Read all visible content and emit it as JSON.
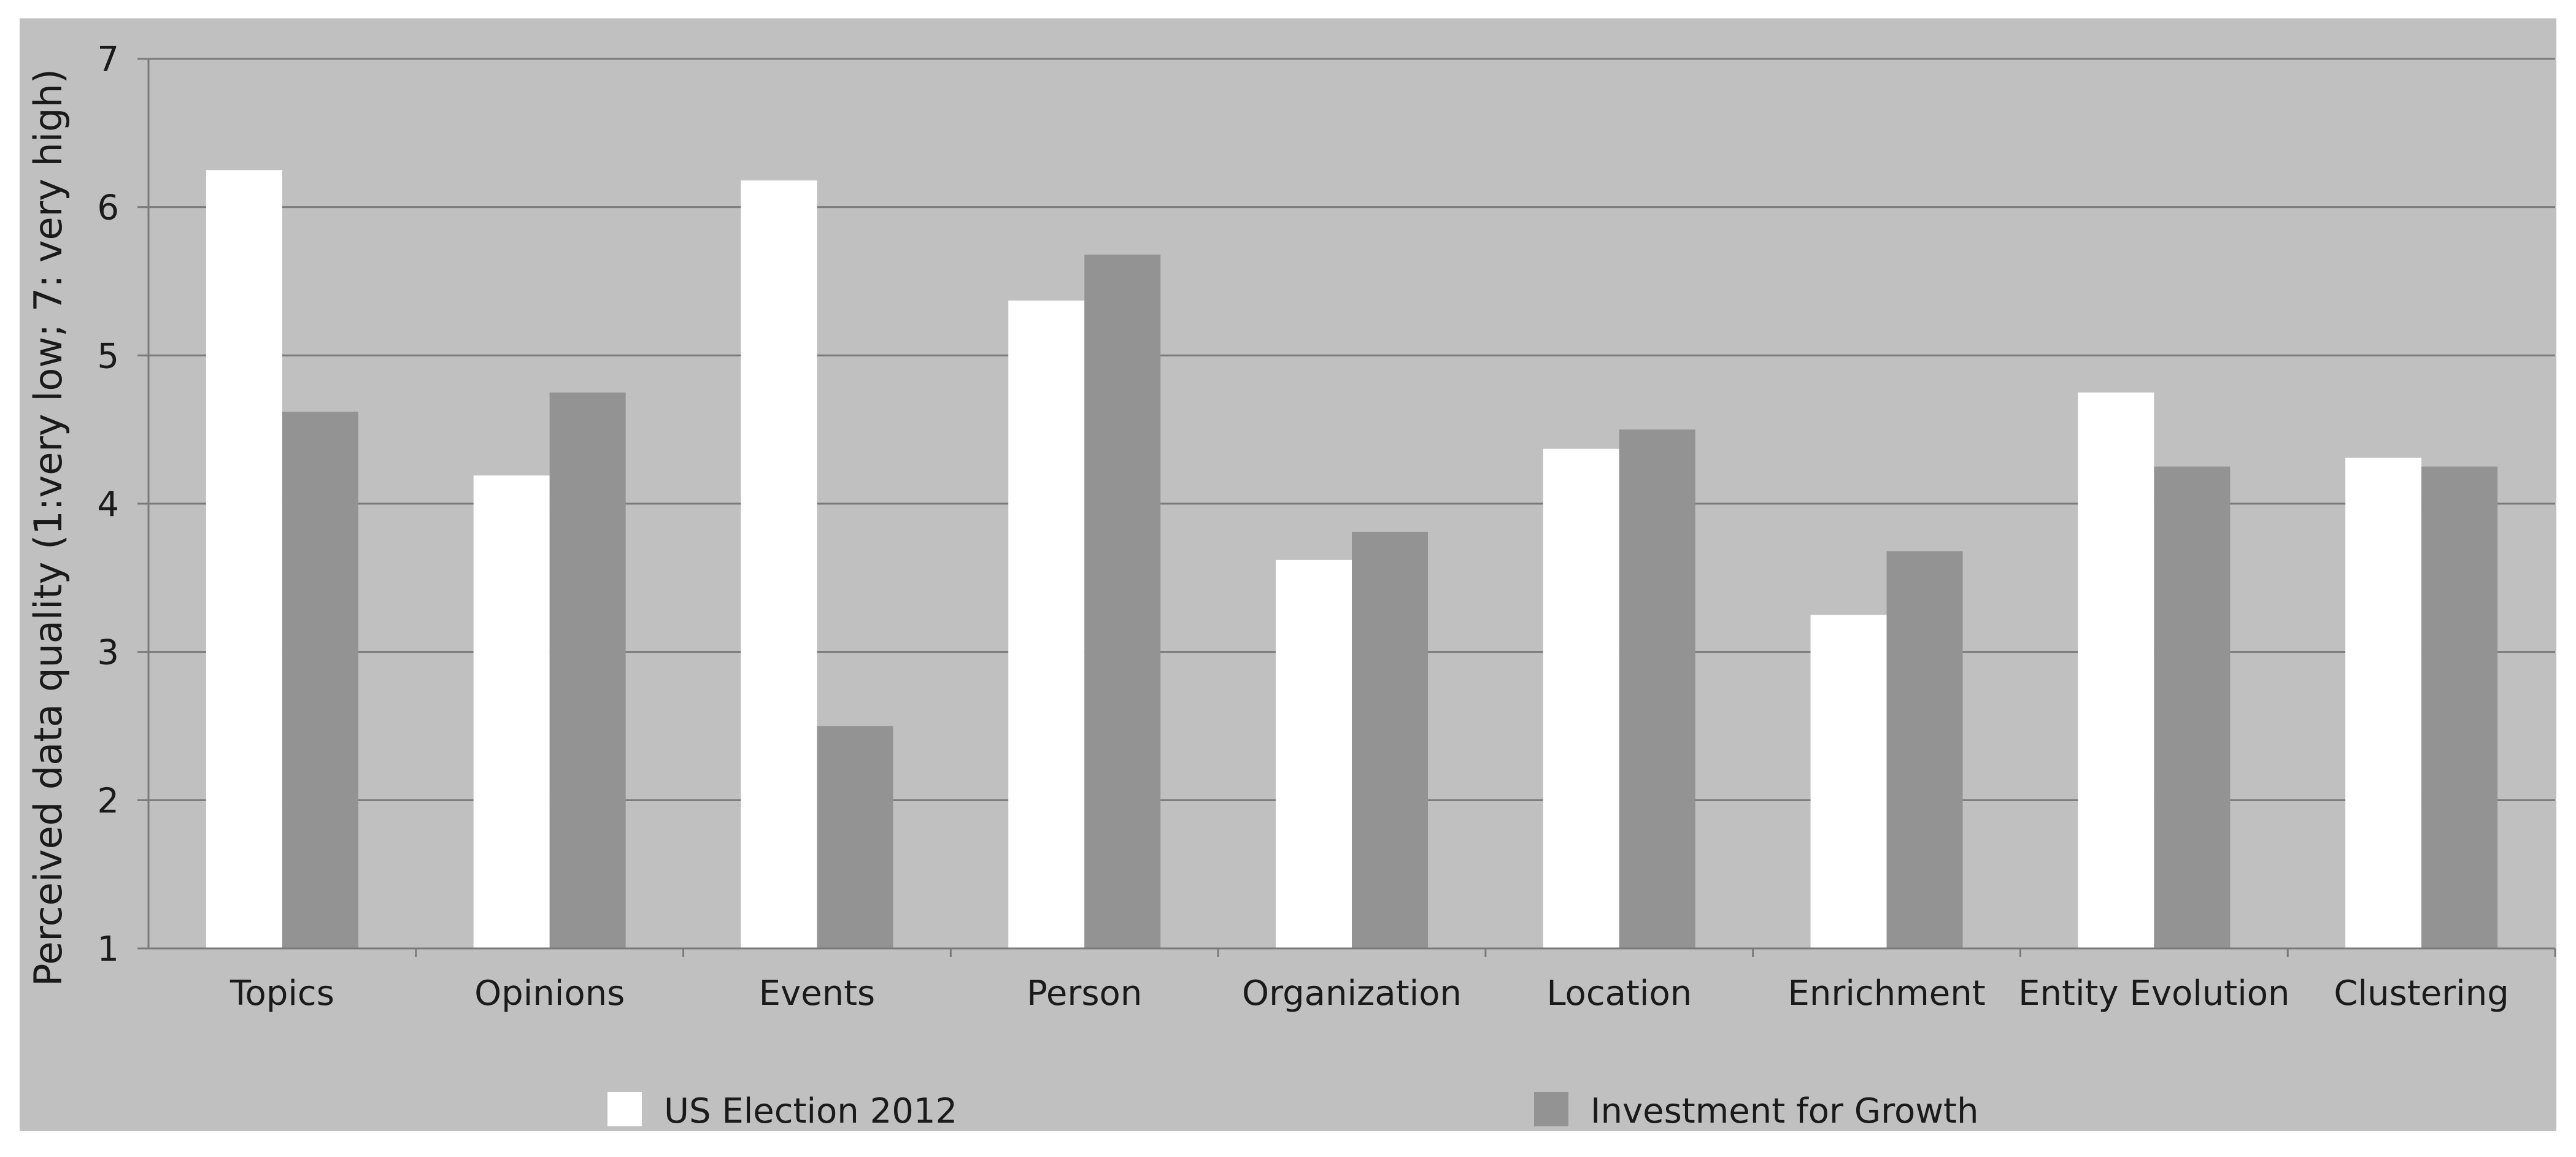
{
  "chart_data": {
    "type": "bar",
    "title": "",
    "xlabel": "",
    "ylabel": "Perceived data quality (1:very low; 7: very high)",
    "ylim": [
      1,
      7
    ],
    "yticks": [
      "1",
      "2",
      "3",
      "4",
      "5",
      "6",
      "7"
    ],
    "grid": true,
    "legend_position": "bottom",
    "categories": [
      "Topics",
      "Opinions",
      "Events",
      "Person",
      "Organization",
      "Location",
      "Enrichment",
      "Entity Evolution",
      "Clustering"
    ],
    "series": [
      {
        "name": "US Election 2012",
        "color": "#ffffff",
        "values": [
          6.25,
          4.19,
          6.18,
          5.37,
          3.62,
          4.37,
          3.25,
          4.75,
          4.31
        ]
      },
      {
        "name": "Investment for Growth",
        "color": "#939393",
        "values": [
          4.62,
          4.75,
          2.5,
          5.68,
          3.81,
          4.5,
          3.68,
          4.25,
          4.25
        ]
      }
    ]
  }
}
